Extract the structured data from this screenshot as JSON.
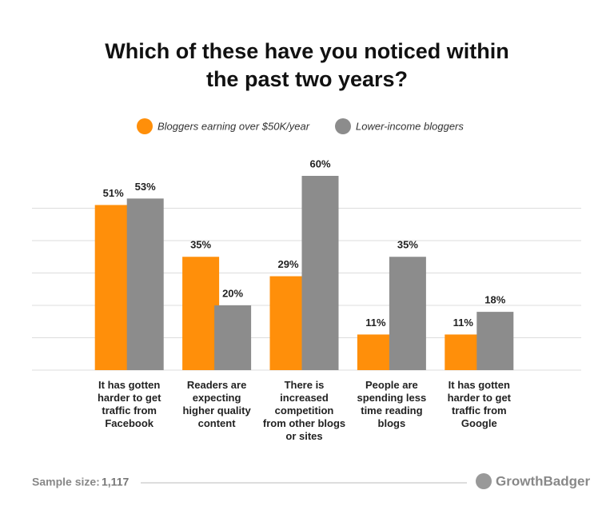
{
  "chart_data": {
    "type": "bar",
    "title": [
      "Which of these have you noticed within",
      "the past two years?"
    ],
    "categories": [
      "It has gotten harder to get traffic from Facebook",
      "Readers are expecting higher quality content",
      "There is increased competition from other blogs or sites",
      "People are spending less time reading blogs",
      "It has gotten harder to get traffic from Google"
    ],
    "series": [
      {
        "name": "Bloggers earning over $50K/year",
        "color": "#ff8f0a",
        "values": [
          51,
          35,
          29,
          11,
          11
        ],
        "value_labels": [
          "51%",
          "35%",
          "29%",
          "11%",
          "11%"
        ]
      },
      {
        "name": "Lower-income bloggers",
        "color": "#8c8c8c",
        "values": [
          53,
          20,
          60,
          35,
          18
        ],
        "value_labels": [
          "53%",
          "20%",
          "60%",
          "35%",
          "18%"
        ]
      }
    ],
    "ylim": [
      0,
      60
    ],
    "yticks": [
      0,
      10,
      20,
      30,
      40,
      50
    ],
    "grid": true,
    "sample_size_label": "Sample size:",
    "sample_size": "1,117",
    "brand": "GrowthBadger"
  }
}
